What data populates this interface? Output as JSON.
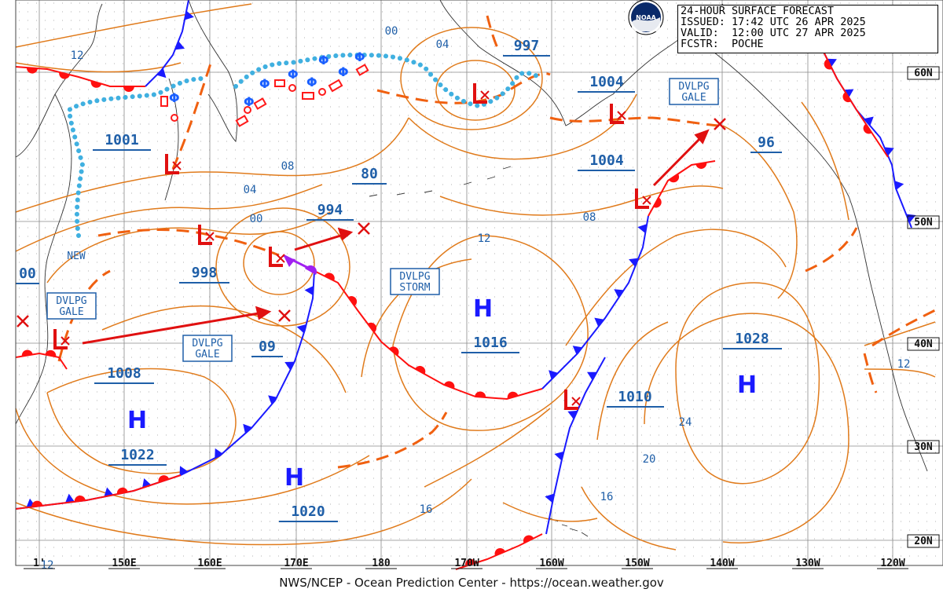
{
  "header": {
    "line1": "24-HOUR SURFACE FORECAST",
    "line2": "ISSUED: 17:42 UTC 26 APR 2025",
    "line3": "VALID:  12:00 UTC 27 APR 2025",
    "line4": "FCSTR:  POCHE"
  },
  "logo": {
    "text": "NOAA"
  },
  "footer": "NWS/NCEP - Ocean Prediction Center - https://ocean.weather.gov",
  "longitude_labels": [
    "1'",
    "150E",
    "160E",
    "170E",
    "180",
    "170W",
    "160W",
    "150W",
    "140W",
    "130W",
    "120W"
  ],
  "latitude_labels": [
    "60N",
    "50N",
    "40N",
    "30N",
    "20N"
  ],
  "pressure_centers": [
    {
      "type": "H",
      "label": "1022"
    },
    {
      "type": "H",
      "label": "1020"
    },
    {
      "type": "H",
      "label": "1016"
    },
    {
      "type": "H",
      "label": "1028"
    },
    {
      "type": "L",
      "label": "1001"
    },
    {
      "type": "L",
      "label": "998"
    },
    {
      "type": "L",
      "label": "994"
    },
    {
      "type": "L",
      "label": "997"
    },
    {
      "type": "L",
      "label": "1004"
    },
    {
      "type": "L",
      "label": "1004"
    },
    {
      "type": "L",
      "label": "1008"
    },
    {
      "type": "L",
      "label": "1010"
    },
    {
      "type": "L",
      "label": "80"
    },
    {
      "type": "L",
      "label": "96"
    },
    {
      "type": "L",
      "label": "09"
    },
    {
      "type": "L",
      "label": "00"
    }
  ],
  "isobar_labels": [
    "12",
    "00",
    "04",
    "08",
    "04",
    "00",
    "08",
    "12",
    "24",
    "20",
    "16",
    "16",
    "12",
    "12"
  ],
  "warnings": [
    {
      "l1": "DVLPG",
      "l2": "GALE"
    },
    {
      "l1": "DVLPG",
      "l2": "GALE"
    },
    {
      "l1": "DVLPG",
      "l2": "STORM"
    },
    {
      "l1": "DVLPG",
      "l2": "GALE"
    }
  ],
  "small_text": {
    "new": "NEW"
  },
  "colors": {
    "isobar": "#e07b1c",
    "cold_front": "#1a1aff",
    "warm_front": "#ff1010",
    "occluded": "#a020f0",
    "label_blue": "#1f5fa8",
    "ice_edge": "#40b0e0",
    "trough": "#f06010",
    "grid": "#9a9a9a"
  }
}
